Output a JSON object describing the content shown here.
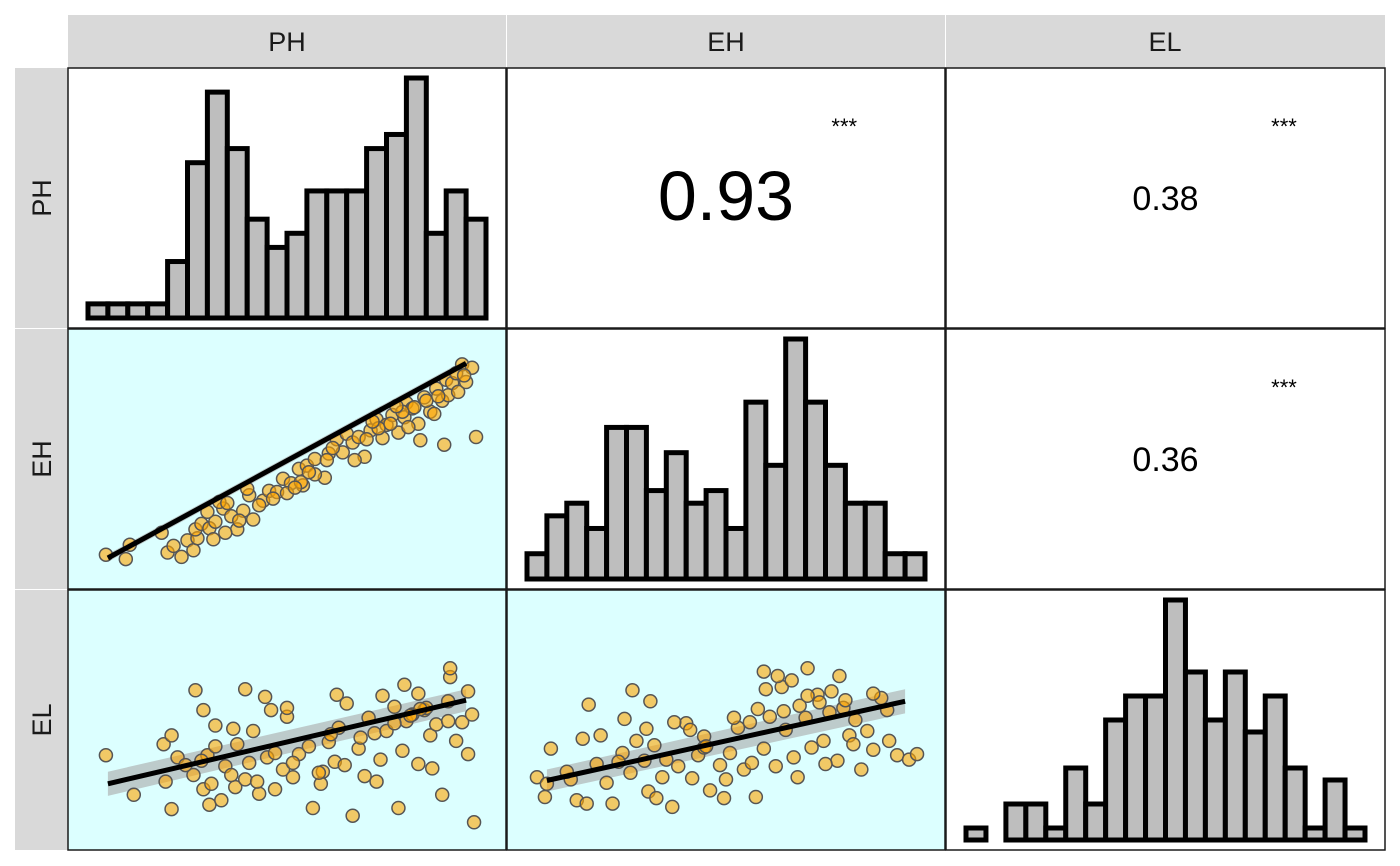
{
  "chart_data": {
    "type": "scatter-matrix",
    "variables": [
      "PH",
      "EH",
      "EL"
    ],
    "ranges": {
      "PH": [
        0,
        20
      ],
      "EH": [
        0,
        20
      ],
      "EL": [
        0,
        20
      ]
    },
    "histograms": {
      "PH": [
        0.5,
        0.5,
        0.5,
        0.5,
        2.0,
        5.5,
        8.0,
        6.0,
        3.5,
        2.5,
        3.0,
        4.5,
        4.5,
        4.5,
        6.0,
        6.5,
        8.5,
        3.0,
        4.5,
        3.5
      ],
      "EH": [
        1.0,
        2.5,
        3.0,
        2.0,
        6.0,
        6.0,
        3.5,
        5.0,
        3.0,
        3.5,
        2.0,
        7.0,
        4.5,
        9.5,
        7.0,
        4.5,
        3.0,
        3.0,
        1.0,
        1.0
      ],
      "EL": [
        0.5,
        0.0,
        1.5,
        1.5,
        0.5,
        3.0,
        1.5,
        5.0,
        6.0,
        6.0,
        10.0,
        7.0,
        5.0,
        7.0,
        4.5,
        6.0,
        3.0,
        0.5,
        2.5,
        0.5
      ]
    },
    "correlations": [
      {
        "row": "PH",
        "col": "EH",
        "value": "0.93",
        "sig": "***"
      },
      {
        "row": "PH",
        "col": "EL",
        "value": "0.38",
        "sig": "***"
      },
      {
        "row": "EH",
        "col": "EL",
        "value": "0.36",
        "sig": "***"
      }
    ],
    "fits": {
      "EH~PH": {
        "x0": 1,
        "y0": 1,
        "x1": 19,
        "y1": 18.7,
        "band": [
          0.35,
          0.35
        ]
      },
      "EL~PH": {
        "x0": 1,
        "y0": 4.2,
        "x1": 19,
        "y1": 11.8,
        "band": [
          1.1,
          1.0
        ]
      },
      "EL~EH": {
        "x0": 1,
        "y0": 4.5,
        "x1": 19,
        "y1": 11.7,
        "band": [
          1.0,
          1.1
        ]
      }
    },
    "scatter": {
      "EH~PH": [
        [
          0.9,
          1.3
        ],
        [
          1.9,
          0.9
        ],
        [
          2.1,
          2.2
        ],
        [
          4.0,
          1.5
        ],
        [
          3.7,
          3.3
        ],
        [
          4.3,
          2.1
        ],
        [
          4.7,
          1.1
        ],
        [
          5.0,
          2.6
        ],
        [
          5.3,
          1.7
        ],
        [
          5.5,
          2.8
        ],
        [
          5.4,
          3.6
        ],
        [
          5.7,
          4.1
        ],
        [
          6.1,
          3.7
        ],
        [
          6.4,
          4.3
        ],
        [
          6.0,
          5.2
        ],
        [
          6.8,
          5.5
        ],
        [
          6.6,
          6.1
        ],
        [
          7.0,
          6.0
        ],
        [
          7.2,
          4.8
        ],
        [
          7.5,
          3.6
        ],
        [
          7.8,
          5.3
        ],
        [
          8.1,
          6.7
        ],
        [
          8.3,
          4.5
        ],
        [
          8.0,
          7.3
        ],
        [
          8.8,
          6.2
        ],
        [
          9.1,
          7.1
        ],
        [
          9.5,
          7.0
        ],
        [
          9.8,
          8.2
        ],
        [
          10.2,
          7.8
        ],
        [
          10.6,
          9.1
        ],
        [
          10.8,
          7.6
        ],
        [
          11.0,
          9.4
        ],
        [
          11.4,
          10.0
        ],
        [
          11.9,
          8.3
        ],
        [
          12.1,
          10.5
        ],
        [
          12.5,
          11.8
        ],
        [
          12.8,
          10.6
        ],
        [
          13.0,
          12.3
        ],
        [
          13.3,
          11.5
        ],
        [
          13.6,
          12.0
        ],
        [
          13.9,
          10.2
        ],
        [
          14.2,
          12.6
        ],
        [
          14.5,
          13.6
        ],
        [
          14.8,
          11.9
        ],
        [
          15.0,
          13.1
        ],
        [
          15.3,
          14.0
        ],
        [
          15.6,
          12.4
        ],
        [
          15.9,
          13.8
        ],
        [
          16.0,
          15.1
        ],
        [
          16.3,
          14.6
        ],
        [
          16.6,
          13.2
        ],
        [
          16.9,
          15.6
        ],
        [
          17.2,
          14.3
        ],
        [
          17.5,
          16.4
        ],
        [
          17.8,
          15.3
        ],
        [
          18.0,
          17.2
        ],
        [
          18.3,
          16.9
        ],
        [
          18.5,
          17.8
        ],
        [
          18.8,
          18.6
        ],
        [
          19.3,
          18.3
        ],
        [
          19.5,
          12.0
        ],
        [
          17.9,
          11.3
        ],
        [
          16.7,
          11.7
        ],
        [
          12.3,
          11.0
        ],
        [
          10.7,
          7.9
        ],
        [
          11.4,
          8.6
        ],
        [
          12.0,
          9.9
        ],
        [
          14.0,
          11.8
        ],
        [
          14.6,
          12.8
        ],
        [
          15.2,
          13.2
        ],
        [
          15.8,
          14.3
        ],
        [
          16.4,
          14.7
        ],
        [
          17.0,
          15.3
        ],
        [
          17.4,
          14.1
        ],
        [
          18.1,
          15.8
        ],
        [
          18.6,
          16.1
        ],
        [
          19.0,
          17.0
        ],
        [
          6.3,
          2.7
        ],
        [
          6.9,
          3.3
        ],
        [
          7.6,
          4.4
        ],
        [
          8.6,
          5.8
        ],
        [
          9.3,
          6.4
        ],
        [
          10.0,
          6.9
        ],
        [
          10.4,
          7.4
        ],
        [
          11.1,
          8.8
        ],
        [
          13.4,
          9.9
        ],
        [
          14.3,
          13.4
        ],
        [
          15.5,
          14.8
        ],
        [
          16.1,
          12.9
        ],
        [
          17.6,
          15.7
        ],
        [
          18.9,
          17.6
        ]
      ],
      "EL~PH": [
        [
          0.9,
          6.8
        ],
        [
          2.3,
          3.2
        ],
        [
          4.2,
          1.9
        ],
        [
          3.8,
          7.8
        ],
        [
          4.5,
          6.6
        ],
        [
          5.3,
          5.0
        ],
        [
          5.8,
          3.7
        ],
        [
          6.1,
          2.3
        ],
        [
          6.0,
          6.8
        ],
        [
          6.4,
          7.6
        ],
        [
          6.7,
          2.7
        ],
        [
          6.9,
          5.8
        ],
        [
          7.4,
          3.9
        ],
        [
          7.5,
          7.8
        ],
        [
          7.9,
          4.6
        ],
        [
          8.3,
          9.0
        ],
        [
          8.1,
          6.1
        ],
        [
          8.6,
          3.3
        ],
        [
          9.0,
          6.6
        ],
        [
          9.4,
          7.0
        ],
        [
          9.8,
          5.5
        ],
        [
          10.3,
          4.8
        ],
        [
          10.6,
          6.9
        ],
        [
          11.1,
          7.6
        ],
        [
          11.3,
          2.0
        ],
        [
          11.8,
          5.3
        ],
        [
          12.1,
          8.0
        ],
        [
          12.4,
          6.2
        ],
        [
          12.6,
          9.3
        ],
        [
          12.9,
          5.9
        ],
        [
          13.3,
          1.3
        ],
        [
          13.6,
          7.4
        ],
        [
          13.9,
          4.9
        ],
        [
          14.1,
          10.2
        ],
        [
          14.4,
          8.8
        ],
        [
          14.7,
          6.4
        ],
        [
          15.0,
          9.0
        ],
        [
          15.4,
          11.2
        ],
        [
          15.6,
          2.0
        ],
        [
          15.8,
          7.2
        ],
        [
          16.0,
          9.9
        ],
        [
          16.3,
          10.5
        ],
        [
          16.6,
          6.0
        ],
        [
          16.9,
          10.9
        ],
        [
          17.2,
          8.6
        ],
        [
          17.5,
          9.6
        ],
        [
          17.8,
          3.2
        ],
        [
          18.1,
          9.9
        ],
        [
          18.5,
          8.1
        ],
        [
          18.8,
          9.8
        ],
        [
          19.1,
          6.9
        ],
        [
          19.3,
          10.5
        ],
        [
          5.8,
          10.9
        ],
        [
          7.3,
          9.2
        ],
        [
          9.2,
          10.9
        ],
        [
          10.0,
          10.3
        ],
        [
          12.5,
          12.3
        ],
        [
          13.0,
          11.5
        ],
        [
          14.8,
          12.2
        ],
        [
          15.9,
          13.2
        ],
        [
          16.6,
          12.4
        ],
        [
          18.2,
          13.9
        ],
        [
          19.1,
          12.6
        ],
        [
          8.9,
          12.1
        ],
        [
          6.4,
          9.5
        ],
        [
          4.2,
          8.6
        ],
        [
          5.4,
          12.7
        ],
        [
          7.9,
          12.8
        ],
        [
          10.0,
          11.1
        ],
        [
          12.2,
          8.7
        ],
        [
          16.2,
          10.4
        ],
        [
          17.0,
          11.1
        ],
        [
          18.1,
          11.7
        ],
        [
          6.2,
          4.2
        ],
        [
          9.4,
          3.7
        ],
        [
          11.7,
          4.2
        ],
        [
          14.5,
          4.4
        ],
        [
          17.3,
          5.6
        ],
        [
          19.4,
          0.7
        ],
        [
          18.2,
          14.7
        ],
        [
          16.7,
          11.0
        ],
        [
          15.4,
          9.7
        ],
        [
          13.7,
          8.4
        ],
        [
          11.6,
          5.2
        ],
        [
          10.3,
          6.1
        ],
        [
          8.5,
          4.4
        ],
        [
          7.2,
          5.0
        ],
        [
          5.7,
          6.3
        ],
        [
          4.9,
          5.9
        ],
        [
          3.9,
          4.4
        ]
      ],
      "EL~EH": [
        [
          0.5,
          4.8
        ],
        [
          0.9,
          3.0
        ],
        [
          1.2,
          7.4
        ],
        [
          2.2,
          4.6
        ],
        [
          2.5,
          2.7
        ],
        [
          3.5,
          6.0
        ],
        [
          3.7,
          8.6
        ],
        [
          4.0,
          4.3
        ],
        [
          4.3,
          2.4
        ],
        [
          4.8,
          7.0
        ],
        [
          5.2,
          5.2
        ],
        [
          5.5,
          8.1
        ],
        [
          5.9,
          6.3
        ],
        [
          6.1,
          3.5
        ],
        [
          6.4,
          7.7
        ],
        [
          6.8,
          4.8
        ],
        [
          7.0,
          6.4
        ],
        [
          7.3,
          2.1
        ],
        [
          7.6,
          5.8
        ],
        [
          8.0,
          9.7
        ],
        [
          8.3,
          4.7
        ],
        [
          8.6,
          6.8
        ],
        [
          8.9,
          8.5
        ],
        [
          9.2,
          3.6
        ],
        [
          9.7,
          5.9
        ],
        [
          9.9,
          2.9
        ],
        [
          10.2,
          7.0
        ],
        [
          10.6,
          9.3
        ],
        [
          10.9,
          5.5
        ],
        [
          11.3,
          6.1
        ],
        [
          11.6,
          11.0
        ],
        [
          11.9,
          7.4
        ],
        [
          12.2,
          10.3
        ],
        [
          12.5,
          5.8
        ],
        [
          12.8,
          13.0
        ],
        [
          13.0,
          9.1
        ],
        [
          13.4,
          6.6
        ],
        [
          13.7,
          11.3
        ],
        [
          14.0,
          10.2
        ],
        [
          14.3,
          7.5
        ],
        [
          14.6,
          12.3
        ],
        [
          14.9,
          8.1
        ],
        [
          15.2,
          10.7
        ],
        [
          15.6,
          6.3
        ],
        [
          15.9,
          11.1
        ],
        [
          16.2,
          8.6
        ],
        [
          16.5,
          10.0
        ],
        [
          16.8,
          5.5
        ],
        [
          17.1,
          9.0
        ],
        [
          17.4,
          7.3
        ],
        [
          17.8,
          12.0
        ],
        [
          18.2,
          8.1
        ],
        [
          18.6,
          6.8
        ],
        [
          19.2,
          6.4
        ],
        [
          19.6,
          6.9
        ],
        [
          1.0,
          4.2
        ],
        [
          2.8,
          8.3
        ],
        [
          3.1,
          11.4
        ],
        [
          4.9,
          10.1
        ],
        [
          6.2,
          11.7
        ],
        [
          7.4,
          9.8
        ],
        [
          8.2,
          9.1
        ],
        [
          10.4,
          10.2
        ],
        [
          12.0,
          12.8
        ],
        [
          13.3,
          13.6
        ],
        [
          14.1,
          12.2
        ],
        [
          15.3,
          12.6
        ],
        [
          16.0,
          11.8
        ],
        [
          17.4,
          12.4
        ],
        [
          12.6,
          14.0
        ],
        [
          11.9,
          14.4
        ],
        [
          14.1,
          14.7
        ],
        [
          15.7,
          14.0
        ],
        [
          5.3,
          12.7
        ],
        [
          6.0,
          9.2
        ],
        [
          8.9,
          7.5
        ],
        [
          10.0,
          4.6
        ],
        [
          11.5,
          3.0
        ],
        [
          13.6,
          4.8
        ],
        [
          15.0,
          6.0
        ],
        [
          16.4,
          7.8
        ],
        [
          18.1,
          10.9
        ],
        [
          4.6,
          6.2
        ],
        [
          2.0,
          5.3
        ],
        [
          3.0,
          2.4
        ],
        [
          6.5,
          2.9
        ],
        [
          9.0,
          7.6
        ],
        [
          11.2,
          9.8
        ],
        [
          12.9,
          10.8
        ],
        [
          14.7,
          11.6
        ]
      ]
    },
    "colors": {
      "strip": "#d9d9d9",
      "panel_lower": "#dcffff",
      "bar_fill": "#bebebe",
      "bar_stroke": "#000000",
      "point_fill": "#ffa500",
      "point_stroke": "#555555",
      "band": "#a9a9a9"
    }
  }
}
